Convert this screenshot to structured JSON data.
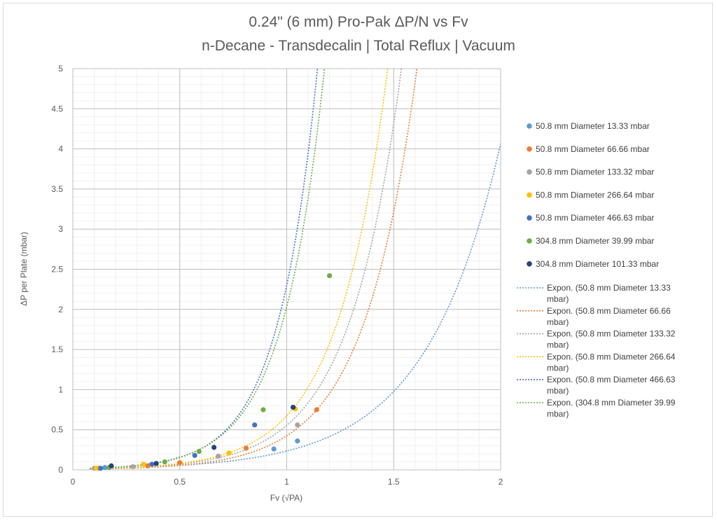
{
  "chart_data": {
    "type": "scatter",
    "title": "0.24\" (6 mm) Pro-Pak ΔP/N vs Fv",
    "subtitle": "n-Decane - Transdecalin | Total Reflux | Vacuum",
    "xlabel": "Fv (√PA)",
    "ylabel": "ΔP per Plate (mbar)",
    "xlim": [
      0,
      2
    ],
    "ylim": [
      0,
      5
    ],
    "x_ticks": [
      "0",
      "0.5",
      "1",
      "1.5",
      "2"
    ],
    "y_ticks": [
      "0",
      "0.5",
      "1",
      "1.5",
      "2",
      "2.5",
      "3",
      "3.5",
      "4",
      "4.5",
      "5"
    ],
    "grid": true,
    "legend_position": "right",
    "series": [
      {
        "name": "50.8 mm Diameter 13.33 mbar",
        "color": "#5b9bd5",
        "points": [
          [
            0.15,
            0.03
          ],
          [
            0.94,
            0.26
          ],
          [
            1.05,
            0.36
          ]
        ],
        "trendline": {
          "label": "Expon. (50.8 mm Diameter 13.33 mbar)",
          "a": 0.0136,
          "b": 2.85
        }
      },
      {
        "name": "50.8 mm Diameter 66.66 mbar",
        "color": "#ed7d31",
        "points": [
          [
            0.12,
            0.02
          ],
          [
            0.35,
            0.05
          ],
          [
            0.5,
            0.09
          ],
          [
            0.81,
            0.27
          ],
          [
            1.14,
            0.75
          ]
        ],
        "trendline": {
          "label": "Expon. (50.8 mm Diameter 66.66 mbar)",
          "a": 0.0074,
          "b": 4.05
        }
      },
      {
        "name": "50.8 mm Diameter 133.32 mbar",
        "color": "#a5a5a5",
        "points": [
          [
            0.1,
            0.02
          ],
          [
            0.28,
            0.04
          ],
          [
            0.68,
            0.17
          ],
          [
            1.05,
            0.56
          ]
        ],
        "trendline": {
          "label": "Expon. (50.8 mm Diameter 133.32 mbar)",
          "a": 0.0092,
          "b": 4.1
        }
      },
      {
        "name": "50.8 mm Diameter 266.64 mbar",
        "color": "#ffc000",
        "points": [
          [
            0.11,
            0.02
          ],
          [
            0.33,
            0.07
          ],
          [
            0.73,
            0.21
          ],
          [
            1.04,
            0.76
          ]
        ],
        "trendline": {
          "label": "Expon. (50.8 mm Diameter 266.64 mbar)",
          "a": 0.0096,
          "b": 4.25
        }
      },
      {
        "name": "50.8 mm Diameter 466.63 mbar",
        "color": "#4472c4",
        "points": [
          [
            0.13,
            0.02
          ],
          [
            0.37,
            0.07
          ],
          [
            0.57,
            0.18
          ],
          [
            0.85,
            0.56
          ],
          [
            1.03,
            0.78
          ]
        ],
        "trendline": {
          "label": "Expon. (50.8 mm Diameter 466.63 mbar)",
          "a": 0.0104,
          "b": 5.4
        }
      },
      {
        "name": "304.8 mm Diameter 39.99 mbar",
        "color": "#70ad47",
        "points": [
          [
            0.17,
            0.03
          ],
          [
            0.43,
            0.1
          ],
          [
            0.59,
            0.23
          ],
          [
            0.89,
            0.75
          ],
          [
            1.2,
            2.42
          ]
        ],
        "trendline": {
          "label": "Expon. (304.8 mm Diameter 39.99 mbar)",
          "a": 0.0124,
          "b": 5.1
        }
      },
      {
        "name": "304.8 mm Diameter 101.33 mbar",
        "color": "#264478",
        "points": [
          [
            0.18,
            0.05
          ],
          [
            0.39,
            0.08
          ],
          [
            0.66,
            0.28
          ],
          [
            1.03,
            0.78
          ]
        ],
        "trendline": null
      }
    ]
  }
}
